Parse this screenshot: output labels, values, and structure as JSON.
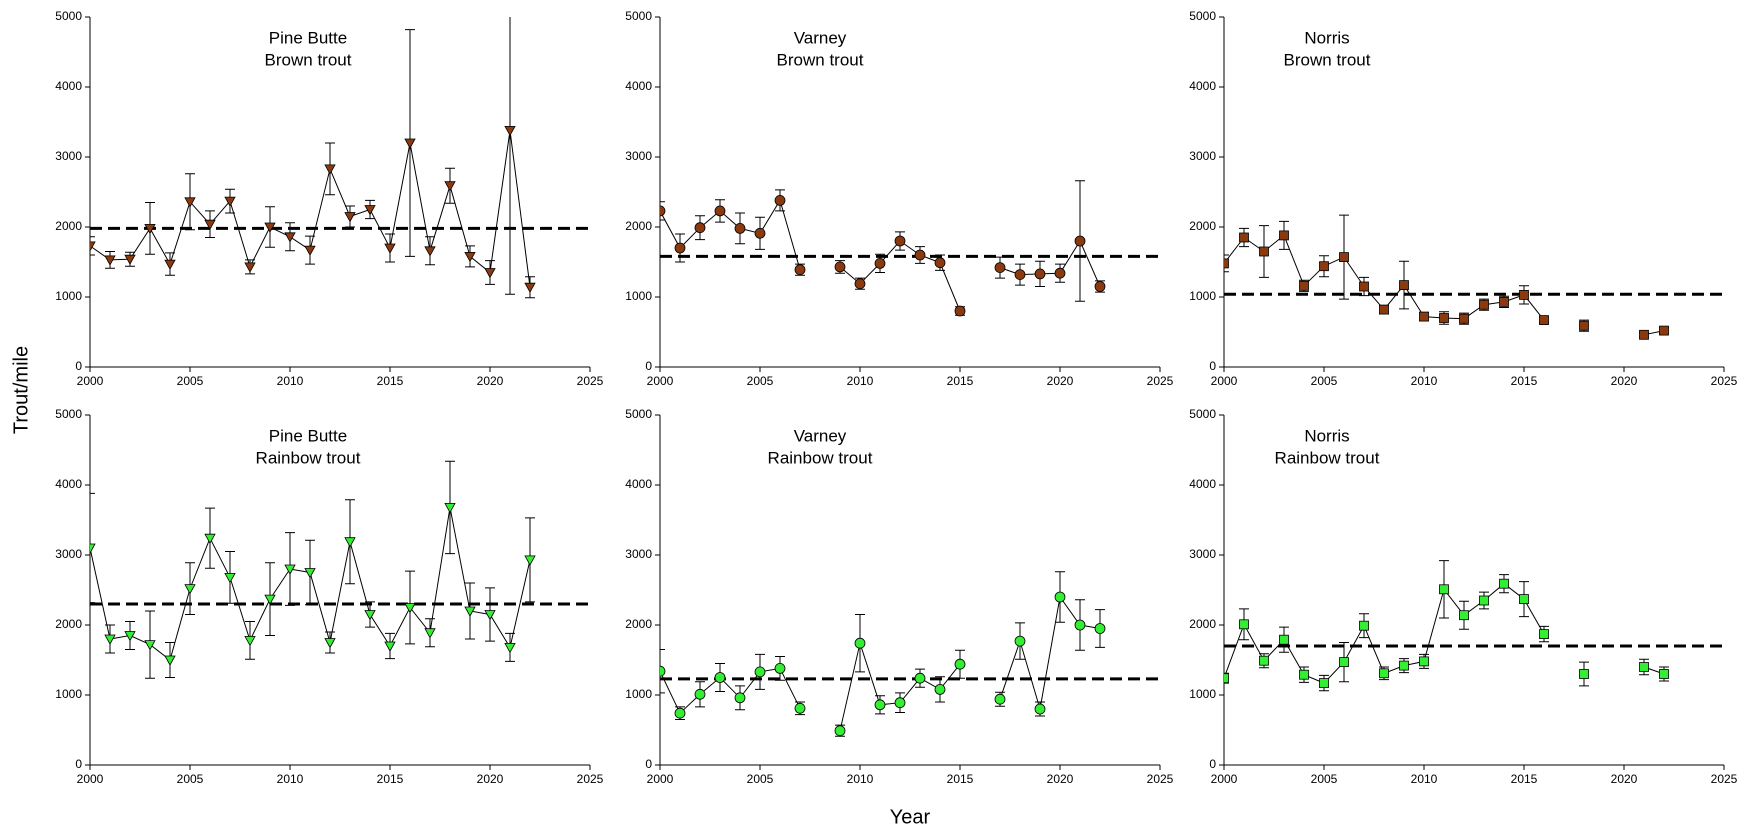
{
  "y_label": "Trout/mile",
  "x_label": "Year",
  "chart_data": [
    {
      "type": "line",
      "title": [
        "Pine Butte",
        "Brown trout"
      ],
      "color": "#8b3a0f",
      "marker": "triangle-down",
      "x": [
        2000,
        2001,
        2002,
        2003,
        2004,
        2005,
        2006,
        2007,
        2008,
        2009,
        2010,
        2011,
        2012,
        2013,
        2014,
        2015,
        2016,
        2017,
        2018,
        2019,
        2020,
        2021,
        2022
      ],
      "values": [
        1730,
        1530,
        1540,
        1980,
        1470,
        2360,
        2040,
        2370,
        1430,
        2000,
        1860,
        1670,
        2830,
        2150,
        2250,
        1700,
        3200,
        1660,
        2590,
        1580,
        1350,
        3380,
        1140
      ],
      "errors": [
        130,
        120,
        100,
        370,
        160,
        400,
        190,
        170,
        100,
        290,
        200,
        200,
        370,
        150,
        130,
        200,
        1620,
        200,
        250,
        150,
        170,
        2340,
        150
      ],
      "reference_line": 1980,
      "xlim": [
        2000,
        2025
      ],
      "xticks": [
        2000,
        2005,
        2010,
        2015,
        2020,
        2025
      ],
      "ylim": [
        0,
        5000
      ],
      "yticks": [
        0,
        1000,
        2000,
        3000,
        4000,
        5000
      ]
    },
    {
      "type": "line",
      "title": [
        "Varney",
        "Brown trout"
      ],
      "color": "#8b3a0f",
      "marker": "circle",
      "x": [
        2000,
        2001,
        2002,
        2003,
        2004,
        2005,
        2006,
        2007,
        2008,
        2009,
        2010,
        2011,
        2012,
        2013,
        2014,
        2015,
        2016,
        2017,
        2018,
        2019,
        2020,
        2021,
        2022
      ],
      "values": [
        2230,
        1700,
        1990,
        2230,
        1980,
        1910,
        2380,
        1390,
        null,
        1430,
        1190,
        1480,
        1800,
        1600,
        1490,
        800,
        null,
        1420,
        1320,
        1330,
        1340,
        1800,
        1150
      ],
      "errors": [
        130,
        200,
        170,
        160,
        220,
        230,
        150,
        80,
        null,
        90,
        80,
        130,
        130,
        120,
        110,
        60,
        null,
        150,
        150,
        180,
        130,
        860,
        80
      ],
      "reference_line": 1580,
      "xlim": [
        2000,
        2025
      ],
      "xticks": [
        2000,
        2005,
        2010,
        2015,
        2020,
        2025
      ],
      "ylim": [
        0,
        5000
      ],
      "yticks": [
        0,
        1000,
        2000,
        3000,
        4000,
        5000
      ]
    },
    {
      "type": "line",
      "title": [
        "Norris",
        "Brown trout"
      ],
      "color": "#8b3a0f",
      "marker": "square",
      "x": [
        2000,
        2001,
        2002,
        2003,
        2004,
        2005,
        2006,
        2007,
        2008,
        2009,
        2010,
        2011,
        2012,
        2013,
        2014,
        2015,
        2016,
        2017,
        2018,
        2019,
        2020,
        2021,
        2022
      ],
      "values": [
        1480,
        1850,
        1650,
        1880,
        1160,
        1440,
        1570,
        1150,
        820,
        1170,
        720,
        700,
        690,
        890,
        930,
        1030,
        670,
        null,
        590,
        null,
        null,
        460,
        520
      ],
      "errors": [
        120,
        130,
        370,
        200,
        80,
        150,
        600,
        130,
        60,
        340,
        60,
        90,
        80,
        80,
        80,
        130,
        40,
        null,
        80,
        null,
        null,
        30,
        40
      ],
      "reference_line": 1040,
      "xlim": [
        2000,
        2025
      ],
      "xticks": [
        2000,
        2005,
        2010,
        2015,
        2020,
        2025
      ],
      "ylim": [
        0,
        5000
      ],
      "yticks": [
        0,
        1000,
        2000,
        3000,
        4000,
        5000
      ]
    },
    {
      "type": "line",
      "title": [
        "Pine Butte",
        "Rainbow trout"
      ],
      "color": "#33ee33",
      "marker": "triangle-down",
      "x": [
        2000,
        2001,
        2002,
        2003,
        2004,
        2005,
        2006,
        2007,
        2008,
        2009,
        2010,
        2011,
        2012,
        2013,
        2014,
        2015,
        2016,
        2017,
        2018,
        2019,
        2020,
        2021,
        2022
      ],
      "values": [
        3100,
        1800,
        1850,
        1720,
        1500,
        2520,
        3240,
        2680,
        1780,
        2370,
        2800,
        2750,
        1750,
        3190,
        2150,
        1700,
        2250,
        1890,
        3680,
        2200,
        2150,
        1680,
        2930
      ],
      "errors": [
        780,
        200,
        200,
        480,
        250,
        370,
        430,
        370,
        270,
        520,
        520,
        460,
        150,
        600,
        180,
        180,
        520,
        200,
        660,
        400,
        380,
        200,
        600
      ],
      "reference_line": 2300,
      "xlim": [
        2000,
        2025
      ],
      "xticks": [
        2000,
        2005,
        2010,
        2015,
        2020,
        2025
      ],
      "ylim": [
        0,
        5000
      ],
      "yticks": [
        0,
        1000,
        2000,
        3000,
        4000,
        5000
      ]
    },
    {
      "type": "line",
      "title": [
        "Varney",
        "Rainbow trout"
      ],
      "color": "#33ee33",
      "marker": "circle",
      "x": [
        2000,
        2001,
        2002,
        2003,
        2004,
        2005,
        2006,
        2007,
        2008,
        2009,
        2010,
        2011,
        2012,
        2013,
        2014,
        2015,
        2016,
        2017,
        2018,
        2019,
        2020,
        2021,
        2022
      ],
      "values": [
        1340,
        740,
        1010,
        1250,
        960,
        1330,
        1380,
        810,
        null,
        490,
        1740,
        860,
        890,
        1240,
        1080,
        1440,
        null,
        940,
        1770,
        800,
        2400,
        2000,
        1950
      ],
      "errors": [
        310,
        90,
        180,
        200,
        170,
        250,
        170,
        90,
        null,
        80,
        410,
        130,
        140,
        130,
        180,
        200,
        null,
        100,
        260,
        100,
        360,
        360,
        270
      ],
      "reference_line": 1230,
      "xlim": [
        2000,
        2025
      ],
      "xticks": [
        2000,
        2005,
        2010,
        2015,
        2020,
        2025
      ],
      "ylim": [
        0,
        5000
      ],
      "yticks": [
        0,
        1000,
        2000,
        3000,
        4000,
        5000
      ]
    },
    {
      "type": "line",
      "title": [
        "Norris",
        "Rainbow trout"
      ],
      "color": "#33ee33",
      "marker": "square",
      "x": [
        2000,
        2001,
        2002,
        2003,
        2004,
        2005,
        2006,
        2007,
        2008,
        2009,
        2010,
        2011,
        2012,
        2013,
        2014,
        2015,
        2016,
        2017,
        2018,
        2019,
        2020,
        2021,
        2022
      ],
      "values": [
        1240,
        2010,
        1490,
        1790,
        1290,
        1170,
        1470,
        1990,
        1310,
        1420,
        1480,
        2510,
        2140,
        2350,
        2590,
        2370,
        1870,
        null,
        1300,
        null,
        null,
        1400,
        1300
      ],
      "errors": [
        70,
        220,
        100,
        180,
        110,
        110,
        280,
        170,
        90,
        100,
        100,
        410,
        200,
        120,
        130,
        250,
        110,
        null,
        170,
        null,
        null,
        110,
        100
      ],
      "reference_line": 1700,
      "xlim": [
        2000,
        2025
      ],
      "xticks": [
        2000,
        2005,
        2010,
        2015,
        2020,
        2025
      ],
      "ylim": [
        0,
        5000
      ],
      "yticks": [
        0,
        1000,
        2000,
        3000,
        4000,
        5000
      ]
    }
  ]
}
